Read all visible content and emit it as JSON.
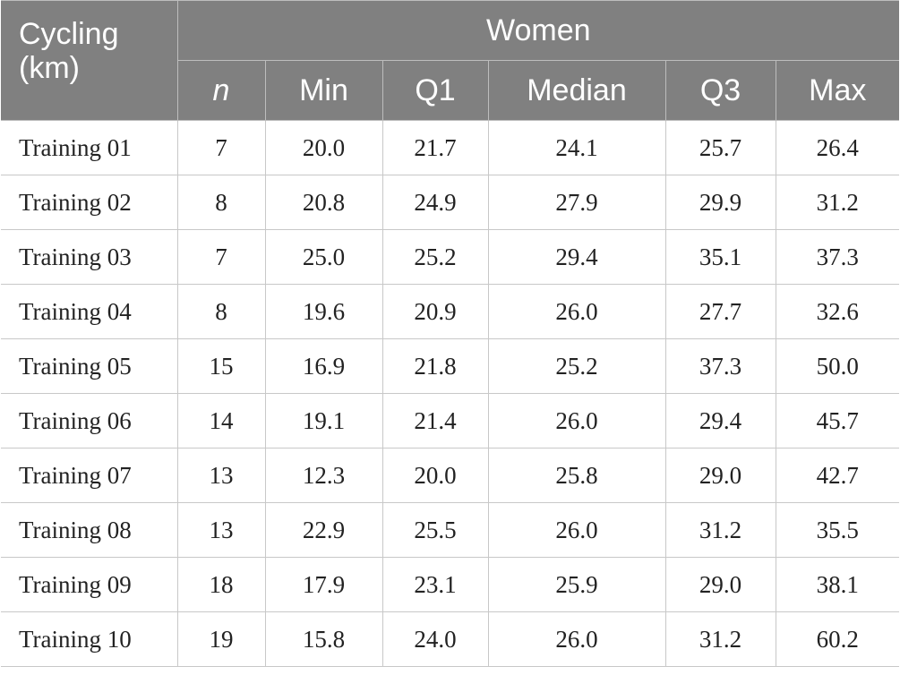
{
  "header": {
    "stub": "Cycling (km)",
    "group": "Women",
    "columns": [
      "n",
      "Min",
      "Q1",
      "Median",
      "Q3",
      "Max"
    ]
  },
  "rows": [
    {
      "label": "Training 01",
      "values": [
        "7",
        "20.0",
        "21.7",
        "24.1",
        "25.7",
        "26.4"
      ]
    },
    {
      "label": "Training 02",
      "values": [
        "8",
        "20.8",
        "24.9",
        "27.9",
        "29.9",
        "31.2"
      ]
    },
    {
      "label": "Training 03",
      "values": [
        "7",
        "25.0",
        "25.2",
        "29.4",
        "35.1",
        "37.3"
      ]
    },
    {
      "label": "Training 04",
      "values": [
        "8",
        "19.6",
        "20.9",
        "26.0",
        "27.7",
        "32.6"
      ]
    },
    {
      "label": "Training 05",
      "values": [
        "15",
        "16.9",
        "21.8",
        "25.2",
        "37.3",
        "50.0"
      ]
    },
    {
      "label": "Training 06",
      "values": [
        "14",
        "19.1",
        "21.4",
        "26.0",
        "29.4",
        "45.7"
      ]
    },
    {
      "label": "Training 07",
      "values": [
        "13",
        "12.3",
        "20.0",
        "25.8",
        "29.0",
        "42.7"
      ]
    },
    {
      "label": "Training 08",
      "values": [
        "13",
        "22.9",
        "25.5",
        "26.0",
        "31.2",
        "35.5"
      ]
    },
    {
      "label": "Training 09",
      "values": [
        "18",
        "17.9",
        "23.1",
        "25.9",
        "29.0",
        "38.1"
      ]
    },
    {
      "label": "Training 10",
      "values": [
        "19",
        "15.8",
        "24.0",
        "26.0",
        "31.2",
        "60.2"
      ]
    }
  ],
  "colors": {
    "header_bg": "#808080",
    "header_text": "#ffffff",
    "grid": "#c8c8c8"
  }
}
